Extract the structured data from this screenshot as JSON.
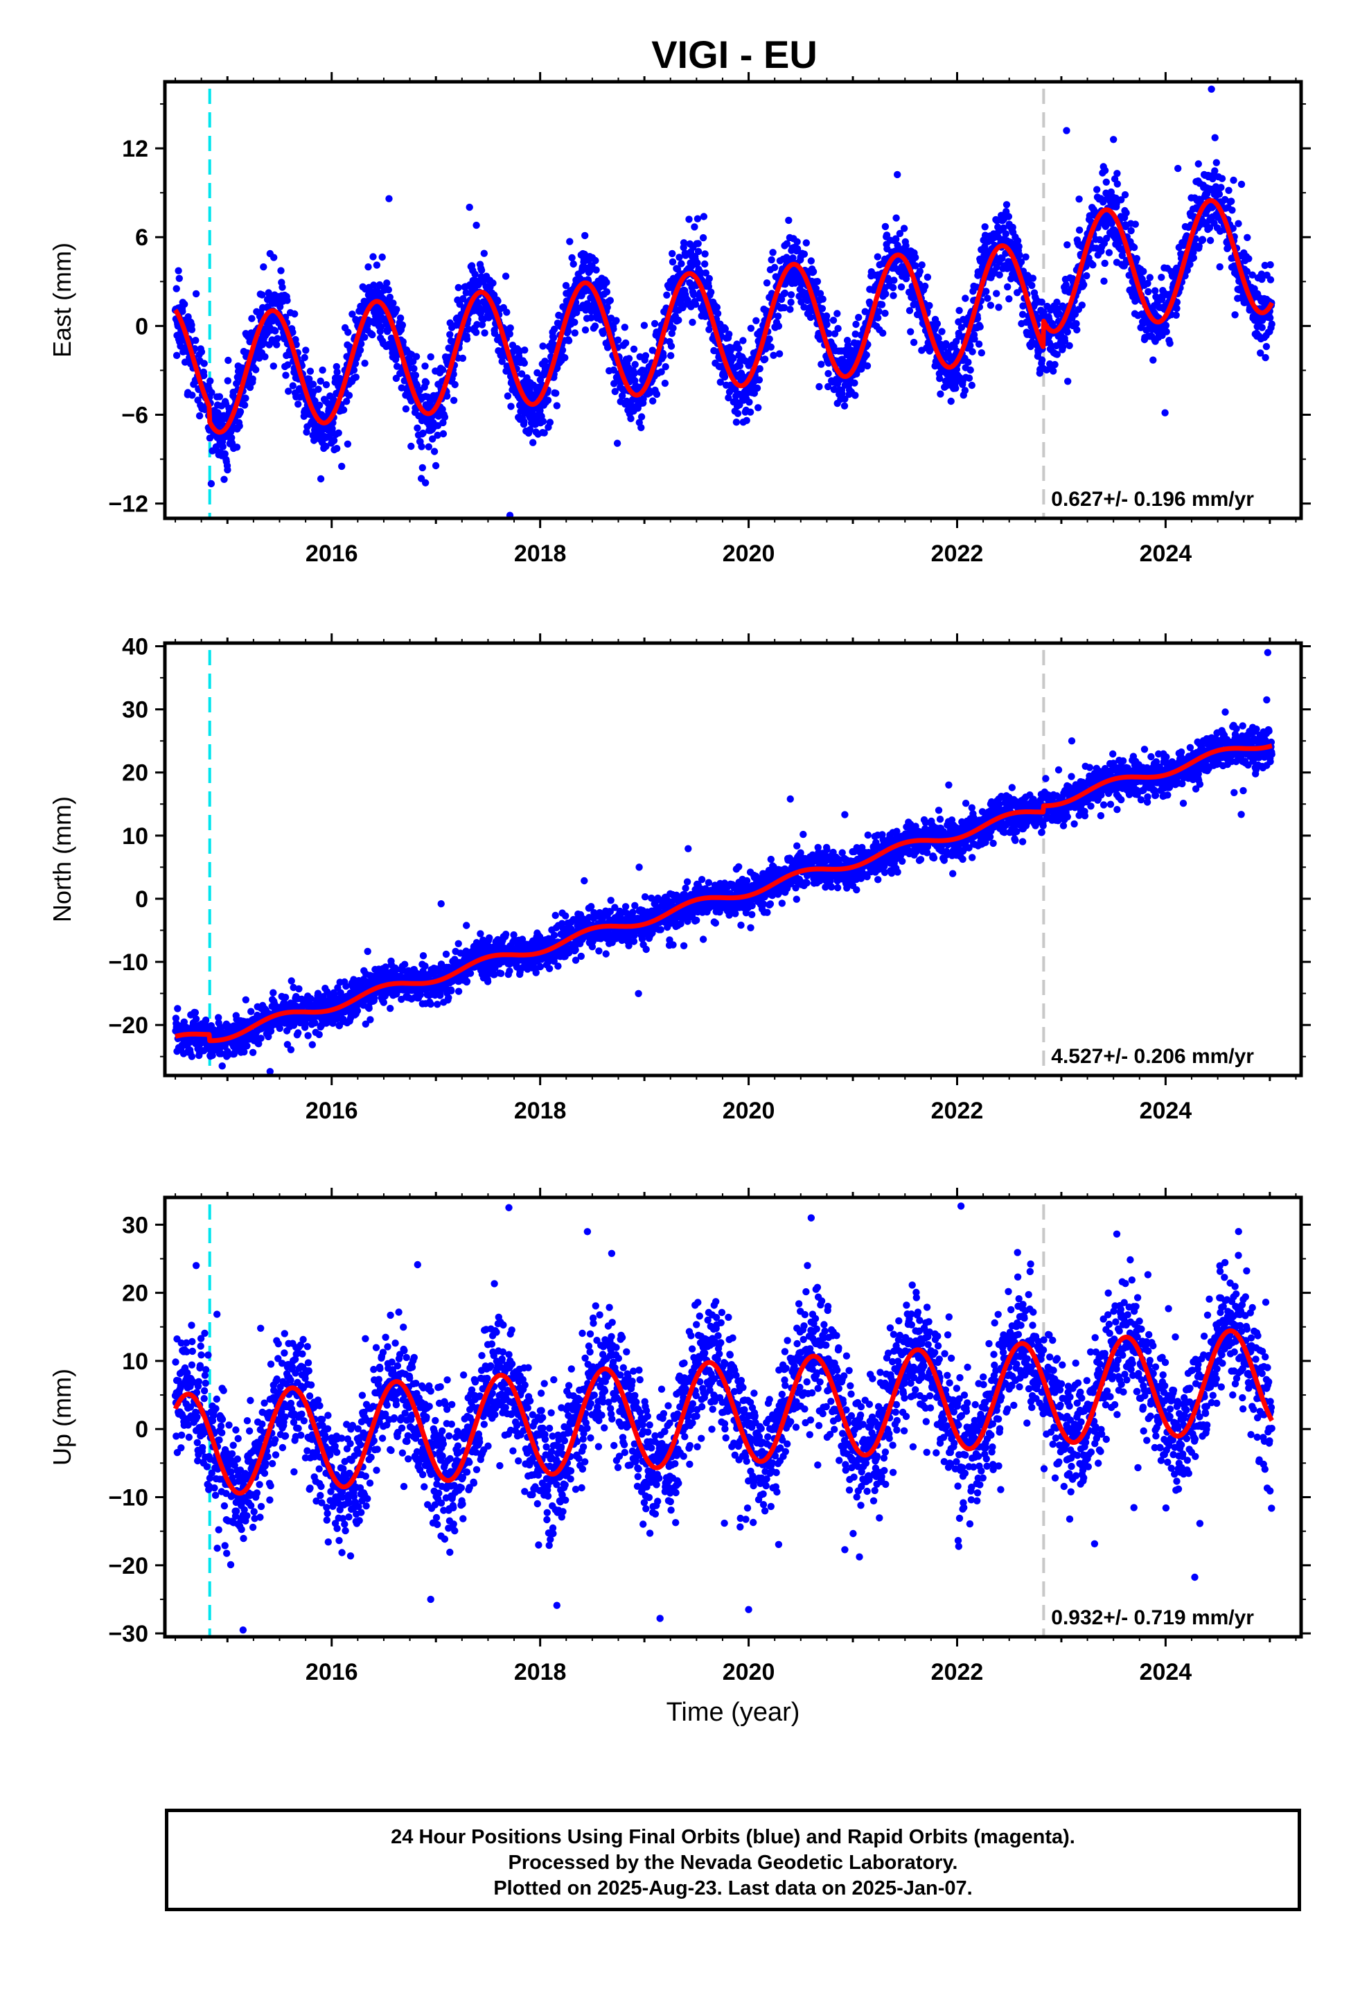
{
  "title": "VIGI - EU",
  "xlabel": "Time (year)",
  "footer": {
    "line1": "24 Hour Positions Using Final Orbits (blue) and Rapid Orbits (magenta).",
    "line2": "Processed by the Nevada Geodetic Laboratory.",
    "line3": "Plotted on 2025-Aug-23. Last data on 2025-Jan-07."
  },
  "colors": {
    "points": "#0000ff",
    "fit": "#ff0000",
    "equipment_change": "#00e5ee",
    "event": "#c8c8c8"
  },
  "chart_data": [
    {
      "type": "scatter",
      "title": "",
      "ylabel": "East (mm)",
      "xlabel": "",
      "xlim": [
        2014.4,
        2025.3
      ],
      "ylim": [
        -13,
        16.5
      ],
      "yticks": [
        -12,
        -6,
        0,
        6,
        12
      ],
      "xticks": [
        2016,
        2018,
        2020,
        2022,
        2024
      ],
      "rate_text": "0.627+/- 0.196 mm/yr",
      "vlines": [
        {
          "x": 2014.83,
          "style": "cyan-dashed"
        },
        {
          "x": 2022.83,
          "style": "gray-dashed"
        }
      ],
      "model": {
        "start": 2014.5,
        "end": 2025.02,
        "offset": -2.5,
        "trend": 0.627,
        "amp": 3.95,
        "peak": 0.43,
        "steps": [
          {
            "at": 2014.83,
            "size": -1.0
          },
          {
            "at": 2022.83,
            "size": 1.8
          }
        ]
      },
      "noise": 1.3,
      "outliers": [
        [
          2024.44,
          16.0
        ],
        [
          2023.05,
          13.2
        ],
        [
          2017.71,
          -12.8
        ],
        [
          2016.55,
          8.6
        ],
        [
          2016.9,
          -10.6
        ],
        [
          2023.5,
          12.6
        ]
      ],
      "fit_series": {
        "name": "",
        "values": [
          [
            2014.5,
            0.5
          ],
          [
            2014.83,
            -4.8
          ],
          [
            2015.0,
            -6.6
          ],
          [
            2015.4,
            1.0
          ],
          [
            2015.9,
            -6.0
          ],
          [
            2016.45,
            1.6
          ],
          [
            2016.95,
            -5.6
          ],
          [
            2017.45,
            2.2
          ],
          [
            2017.95,
            -5.0
          ],
          [
            2018.45,
            2.8
          ],
          [
            2018.95,
            -4.4
          ],
          [
            2019.45,
            3.4
          ],
          [
            2019.95,
            -3.8
          ],
          [
            2020.45,
            4.0
          ],
          [
            2020.95,
            -3.2
          ],
          [
            2021.45,
            4.6
          ],
          [
            2021.95,
            -2.6
          ],
          [
            2022.45,
            5.3
          ],
          [
            2022.83,
            -1.5
          ],
          [
            2023.45,
            7.4
          ],
          [
            2023.95,
            0.6
          ],
          [
            2024.45,
            8.0
          ],
          [
            2024.95,
            1.5
          ]
        ]
      }
    },
    {
      "type": "scatter",
      "title": "",
      "ylabel": "North (mm)",
      "xlabel": "",
      "xlim": [
        2014.4,
        2025.3
      ],
      "ylim": [
        -28,
        40.5
      ],
      "yticks": [
        -20,
        -10,
        0,
        10,
        20,
        30,
        40
      ],
      "xticks": [
        2016,
        2018,
        2020,
        2022,
        2024
      ],
      "rate_text": "4.527+/- 0.206 mm/yr",
      "vlines": [
        {
          "x": 2014.83,
          "style": "cyan-dashed"
        },
        {
          "x": 2022.83,
          "style": "gray-dashed"
        }
      ],
      "model": {
        "start": 2014.5,
        "end": 2025.02,
        "offset": -22.6,
        "trend": 4.527,
        "amp": 0.8,
        "peak": 0.5,
        "steps": [
          {
            "at": 2014.83,
            "size": -1.0
          },
          {
            "at": 2022.83,
            "size": 1.0
          }
        ]
      },
      "noise": 1.5,
      "outliers": [
        [
          2024.98,
          39.0
        ],
        [
          2024.97,
          31.5
        ],
        [
          2020.4,
          15.8
        ],
        [
          2023.1,
          25.0
        ],
        [
          2018.95,
          5.0
        ],
        [
          2017.05,
          -0.8
        ],
        [
          2014.95,
          -26.5
        ]
      ],
      "fit_series": {
        "name": "",
        "values": [
          [
            2014.5,
            -22.6
          ],
          [
            2014.83,
            -23.5
          ],
          [
            2015.2,
            -21.0
          ],
          [
            2015.6,
            -18.5
          ],
          [
            2016.0,
            -19.0
          ],
          [
            2016.6,
            -14.0
          ],
          [
            2017.0,
            -12.5
          ],
          [
            2017.6,
            -10.0
          ],
          [
            2018.0,
            -8.0
          ],
          [
            2018.6,
            -5.0
          ],
          [
            2019.0,
            -3.5
          ],
          [
            2019.6,
            -0.5
          ],
          [
            2020.0,
            1.5
          ],
          [
            2020.6,
            4.5
          ],
          [
            2021.0,
            5.5
          ],
          [
            2021.6,
            8.5
          ],
          [
            2022.0,
            10.0
          ],
          [
            2022.6,
            13.0
          ],
          [
            2022.83,
            13.0
          ],
          [
            2023.2,
            16.5
          ],
          [
            2023.6,
            19.0
          ],
          [
            2024.0,
            20.5
          ],
          [
            2024.6,
            23.5
          ],
          [
            2025.0,
            26.0
          ]
        ]
      }
    },
    {
      "type": "scatter",
      "title": "",
      "ylabel": "Up (mm)",
      "xlabel": "Time (year)",
      "xlim": [
        2014.4,
        2025.3
      ],
      "ylim": [
        -30.5,
        34
      ],
      "yticks": [
        -30,
        -20,
        -10,
        0,
        10,
        20,
        30
      ],
      "xticks": [
        2016,
        2018,
        2020,
        2022,
        2024
      ],
      "rate_text": "0.932+/- 0.719 mm/yr",
      "vlines": [
        {
          "x": 2014.83,
          "style": "cyan-dashed"
        },
        {
          "x": 2022.83,
          "style": "gray-dashed"
        }
      ],
      "model": {
        "start": 2014.5,
        "end": 2025.02,
        "offset": -2.5,
        "trend": 0.932,
        "amp": 7.5,
        "peak": 0.62,
        "steps": []
      },
      "noise": 4.5,
      "outliers": [
        [
          2017.7,
          32.5
        ],
        [
          2020.6,
          31.0
        ],
        [
          2015.15,
          -29.5
        ],
        [
          2019.15,
          -27.8
        ],
        [
          2020.0,
          -26.5
        ],
        [
          2016.95,
          -25.0
        ],
        [
          2024.7,
          29.0
        ],
        [
          2014.7,
          24.0
        ]
      ],
      "fit_series": {
        "name": "",
        "values": [
          [
            2014.6,
            5.5
          ],
          [
            2015.1,
            -9.5
          ],
          [
            2015.6,
            6.0
          ],
          [
            2016.15,
            -8.5
          ],
          [
            2016.6,
            6.5
          ],
          [
            2017.15,
            -8.0
          ],
          [
            2017.6,
            7.5
          ],
          [
            2018.15,
            -7.0
          ],
          [
            2018.6,
            8.5
          ],
          [
            2019.15,
            -6.0
          ],
          [
            2019.6,
            9.5
          ],
          [
            2020.15,
            -5.0
          ],
          [
            2020.6,
            10.5
          ],
          [
            2021.15,
            -4.0
          ],
          [
            2021.6,
            11.5
          ],
          [
            2022.15,
            -3.0
          ],
          [
            2022.6,
            12.0
          ],
          [
            2023.15,
            -3.5
          ],
          [
            2023.6,
            12.0
          ],
          [
            2024.15,
            -2.5
          ],
          [
            2024.6,
            13.0
          ],
          [
            2025.0,
            0.0
          ]
        ]
      }
    }
  ]
}
